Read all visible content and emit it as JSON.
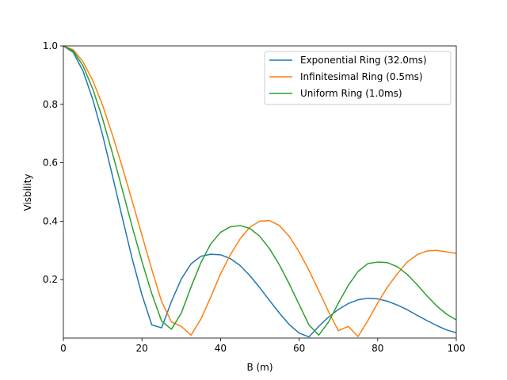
{
  "chart_data": {
    "type": "line",
    "title": "",
    "xlabel": "B (m)",
    "ylabel": "Visbility",
    "xlim": [
      0,
      100
    ],
    "ylim": [
      0,
      1.0
    ],
    "xticks": [
      0,
      20,
      40,
      60,
      80,
      100
    ],
    "xtick_labels": [
      "0",
      "20",
      "40",
      "60",
      "80",
      "100"
    ],
    "yticks": [
      0.2,
      0.4,
      0.6,
      0.8,
      1.0
    ],
    "ytick_labels": [
      "0.2",
      "0.4",
      "0.6",
      "0.8",
      "1.0"
    ],
    "grid": false,
    "legend_position": "upper-right",
    "x": [
      0,
      2.5,
      5,
      7.5,
      10,
      12.5,
      15,
      17.5,
      20,
      22.5,
      25,
      27.5,
      30,
      32.5,
      35,
      37.5,
      40,
      42.5,
      45,
      47.5,
      50,
      52.5,
      55,
      57.5,
      60,
      62.5,
      65,
      67.5,
      70,
      72.5,
      75,
      77.5,
      80,
      82.5,
      85,
      87.5,
      90,
      92.5,
      95,
      97.5,
      100
    ],
    "series": [
      {
        "name": "Exponential Ring (32.0ms)",
        "color": "#1f77b4",
        "values": [
          1.0,
          0.978,
          0.914,
          0.816,
          0.694,
          0.555,
          0.412,
          0.272,
          0.148,
          0.045,
          0.035,
          0.125,
          0.202,
          0.254,
          0.28,
          0.287,
          0.285,
          0.272,
          0.248,
          0.213,
          0.172,
          0.128,
          0.085,
          0.046,
          0.017,
          0.004,
          0.04,
          0.072,
          0.098,
          0.118,
          0.131,
          0.136,
          0.134,
          0.126,
          0.113,
          0.097,
          0.078,
          0.06,
          0.043,
          0.028,
          0.018
        ]
      },
      {
        "name": "Infinitesimal Ring (0.5ms)",
        "color": "#ff7f0e",
        "values": [
          1.0,
          0.987,
          0.946,
          0.881,
          0.796,
          0.695,
          0.585,
          0.47,
          0.352,
          0.235,
          0.125,
          0.055,
          0.04,
          0.01,
          0.065,
          0.14,
          0.22,
          0.285,
          0.34,
          0.38,
          0.4,
          0.402,
          0.385,
          0.348,
          0.295,
          0.232,
          0.162,
          0.09,
          0.025,
          0.04,
          0.005,
          0.06,
          0.12,
          0.175,
          0.22,
          0.26,
          0.285,
          0.298,
          0.3,
          0.295,
          0.29
        ]
      },
      {
        "name": "Uniform Ring (1.0ms)",
        "color": "#2ca02c",
        "values": [
          1.0,
          0.983,
          0.932,
          0.852,
          0.75,
          0.632,
          0.508,
          0.382,
          0.262,
          0.152,
          0.058,
          0.03,
          0.085,
          0.175,
          0.258,
          0.322,
          0.362,
          0.381,
          0.385,
          0.375,
          0.348,
          0.305,
          0.25,
          0.185,
          0.115,
          0.045,
          0.01,
          0.055,
          0.12,
          0.18,
          0.228,
          0.255,
          0.26,
          0.258,
          0.244,
          0.218,
          0.183,
          0.145,
          0.11,
          0.082,
          0.062
        ]
      }
    ]
  }
}
